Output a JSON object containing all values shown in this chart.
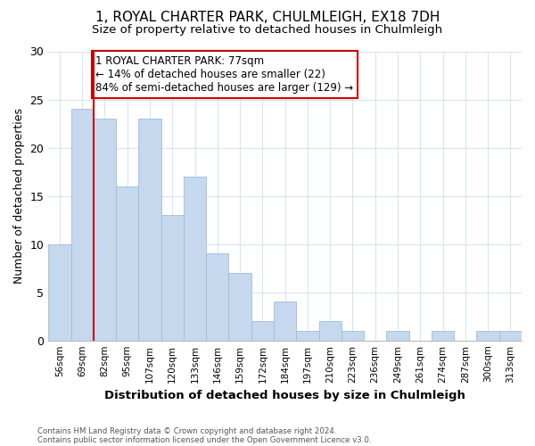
{
  "title1": "1, ROYAL CHARTER PARK, CHULMLEIGH, EX18 7DH",
  "title2": "Size of property relative to detached houses in Chulmleigh",
  "xlabel": "Distribution of detached houses by size in Chulmleigh",
  "ylabel": "Number of detached properties",
  "categories": [
    "56sqm",
    "69sqm",
    "82sqm",
    "95sqm",
    "107sqm",
    "120sqm",
    "133sqm",
    "146sqm",
    "159sqm",
    "172sqm",
    "184sqm",
    "197sqm",
    "210sqm",
    "223sqm",
    "236sqm",
    "249sqm",
    "261sqm",
    "274sqm",
    "287sqm",
    "300sqm",
    "313sqm"
  ],
  "values": [
    10,
    24,
    23,
    16,
    23,
    13,
    17,
    9,
    7,
    2,
    4,
    1,
    2,
    1,
    0,
    1,
    0,
    1,
    0,
    1,
    1
  ],
  "bar_color": "#c5d8ee",
  "bar_edge_color": "#a0bcd8",
  "red_line_index": 2,
  "annotation_text": "1 ROYAL CHARTER PARK: 77sqm\n← 14% of detached houses are smaller (22)\n84% of semi-detached houses are larger (129) →",
  "annotation_box_color": "#ffffff",
  "annotation_box_edge": "#cc0000",
  "ylim": [
    0,
    30
  ],
  "yticks": [
    0,
    5,
    10,
    15,
    20,
    25,
    30
  ],
  "footer1": "Contains HM Land Registry data © Crown copyright and database right 2024.",
  "footer2": "Contains public sector information licensed under the Open Government Licence v3.0.",
  "background_color": "#ffffff",
  "grid_color": "#d8e4f0",
  "title_fontsize": 11,
  "subtitle_fontsize": 9.5,
  "annotation_fontsize": 8.5
}
